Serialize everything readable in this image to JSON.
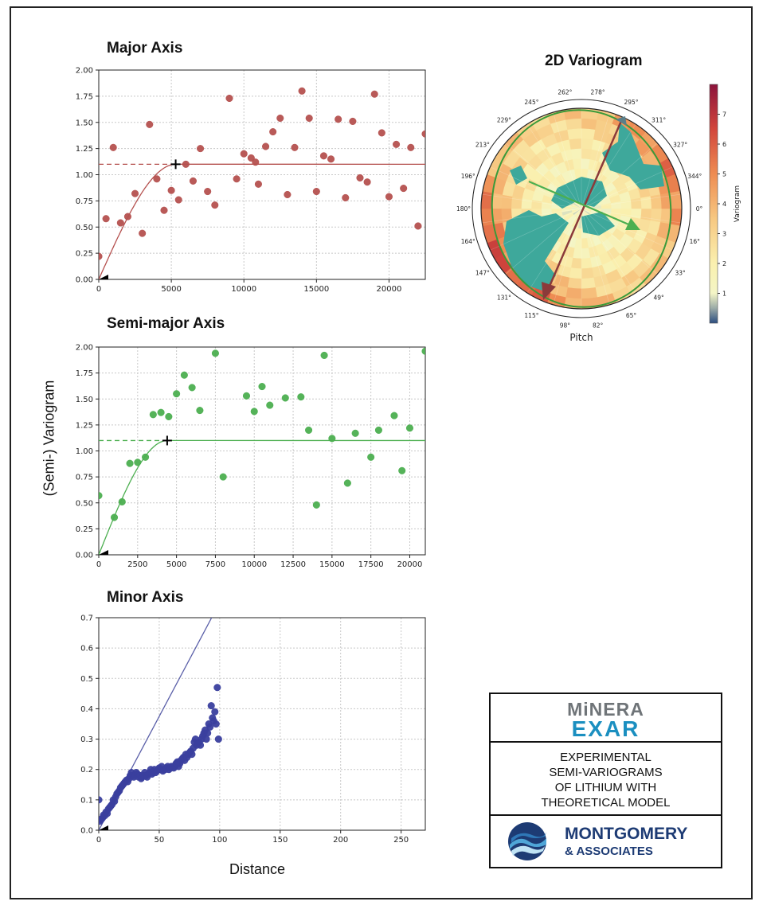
{
  "page": {
    "y_axis_label": "(Semi-) Variogram",
    "x_axis_label": "Distance"
  },
  "chart_data": [
    {
      "id": "major",
      "type": "scatter",
      "title": "Major Axis",
      "color": "#b5514f",
      "xlim": [
        0,
        22500
      ],
      "ylim": [
        0,
        2.0
      ],
      "xticks": [
        0,
        5000,
        10000,
        15000,
        20000
      ],
      "yticks": [
        0.0,
        0.25,
        0.5,
        0.75,
        1.0,
        1.25,
        1.5,
        1.75,
        2.0
      ],
      "xtick_labels": [
        "0",
        "5000",
        "10000",
        "15000",
        "20000"
      ],
      "ytick_labels": [
        "0.00",
        "0.25",
        "0.50",
        "0.75",
        "1.00",
        "1.25",
        "1.50",
        "1.75",
        "2.00"
      ],
      "grid": true,
      "sill": 1.1,
      "range": 5300,
      "x": [
        0,
        500,
        1000,
        1500,
        2000,
        2500,
        3000,
        3500,
        4000,
        4500,
        5000,
        5500,
        6000,
        6500,
        7000,
        7500,
        8000,
        9000,
        9500,
        10000,
        10500,
        10800,
        11000,
        11500,
        12000,
        12500,
        13000,
        13500,
        14000,
        14500,
        15000,
        15500,
        16000,
        16500,
        17000,
        17500,
        18000,
        18500,
        19000,
        19500,
        20000,
        20500,
        21000,
        21500,
        22000,
        22500
      ],
      "y": [
        0.22,
        0.58,
        1.26,
        0.54,
        0.6,
        0.82,
        0.44,
        1.48,
        0.96,
        0.66,
        0.85,
        0.76,
        1.1,
        0.94,
        1.25,
        0.84,
        0.71,
        1.73,
        0.96,
        1.2,
        1.16,
        1.12,
        0.91,
        1.27,
        1.41,
        1.54,
        0.81,
        1.26,
        1.8,
        1.54,
        0.84,
        1.18,
        1.15,
        1.53,
        0.78,
        1.51,
        0.97,
        0.93,
        1.77,
        1.4,
        0.79,
        1.29,
        0.87,
        1.26,
        0.51,
        1.39
      ]
    },
    {
      "id": "semimajor",
      "type": "scatter",
      "title": "Semi-major Axis",
      "color": "#4caf50",
      "xlim": [
        0,
        21000
      ],
      "ylim": [
        0,
        2.0
      ],
      "xticks": [
        0,
        2500,
        5000,
        7500,
        10000,
        12500,
        15000,
        17500,
        20000
      ],
      "yticks": [
        0.0,
        0.25,
        0.5,
        0.75,
        1.0,
        1.25,
        1.5,
        1.75,
        2.0
      ],
      "xtick_labels": [
        "0",
        "2500",
        "5000",
        "7500",
        "10000",
        "12500",
        "15000",
        "17500",
        "20000"
      ],
      "ytick_labels": [
        "0.00",
        "0.25",
        "0.50",
        "0.75",
        "1.00",
        "1.25",
        "1.50",
        "1.75",
        "2.00"
      ],
      "grid": true,
      "sill": 1.1,
      "range": 4400,
      "x": [
        0,
        1000,
        1500,
        2000,
        2500,
        3000,
        3500,
        4000,
        4500,
        5000,
        5500,
        6000,
        6500,
        7500,
        8000,
        9500,
        10000,
        10500,
        11000,
        12000,
        13000,
        13500,
        14000,
        14500,
        15000,
        16000,
        16500,
        17500,
        18000,
        19000,
        19500,
        20000,
        21000
      ],
      "y": [
        0.57,
        0.36,
        0.51,
        0.88,
        0.89,
        0.94,
        1.35,
        1.37,
        1.33,
        1.55,
        1.73,
        1.61,
        1.39,
        1.94,
        0.75,
        1.53,
        1.38,
        1.62,
        1.44,
        1.51,
        1.52,
        1.2,
        0.48,
        1.92,
        1.12,
        0.69,
        1.17,
        0.94,
        1.2,
        1.34,
        0.81,
        1.22,
        1.96
      ]
    },
    {
      "id": "minor",
      "type": "scatter",
      "title": "Minor Axis",
      "color": "#3a3f9e",
      "xlim": [
        0,
        270
      ],
      "ylim": [
        0,
        0.7
      ],
      "xticks": [
        0,
        50,
        100,
        150,
        200,
        250
      ],
      "yticks": [
        0.0,
        0.1,
        0.2,
        0.3,
        0.4,
        0.5,
        0.6,
        0.7
      ],
      "xtick_labels": [
        "0",
        "50",
        "100",
        "150",
        "200",
        "250"
      ],
      "ytick_labels": [
        "0.0",
        "0.1",
        "0.2",
        "0.3",
        "0.4",
        "0.5",
        "0.6",
        "0.7"
      ],
      "grid": true,
      "model_slope": 0.0075,
      "x": [
        0,
        1,
        2,
        3,
        4,
        5,
        6,
        7,
        8,
        9,
        10,
        11,
        12,
        13,
        14,
        15,
        16,
        17,
        18,
        19,
        20,
        21,
        22,
        23,
        24,
        25,
        26,
        27,
        28,
        29,
        30,
        31,
        32,
        33,
        34,
        35,
        36,
        37,
        38,
        39,
        40,
        41,
        42,
        43,
        44,
        45,
        46,
        47,
        48,
        49,
        50,
        51,
        52,
        53,
        54,
        55,
        56,
        57,
        58,
        59,
        60,
        61,
        62,
        63,
        64,
        65,
        66,
        67,
        68,
        69,
        70,
        71,
        72,
        73,
        74,
        75,
        76,
        77,
        78,
        79,
        80,
        81,
        82,
        83,
        84,
        85,
        86,
        87,
        88,
        89,
        90,
        91,
        92,
        93,
        94,
        95,
        96,
        97,
        98,
        99
      ],
      "y": [
        0.1,
        0.03,
        0.035,
        0.04,
        0.05,
        0.048,
        0.06,
        0.055,
        0.07,
        0.075,
        0.08,
        0.085,
        0.1,
        0.095,
        0.11,
        0.12,
        0.125,
        0.13,
        0.14,
        0.145,
        0.15,
        0.155,
        0.16,
        0.165,
        0.16,
        0.17,
        0.18,
        0.19,
        0.18,
        0.175,
        0.18,
        0.19,
        0.185,
        0.175,
        0.18,
        0.17,
        0.175,
        0.18,
        0.19,
        0.18,
        0.175,
        0.185,
        0.19,
        0.2,
        0.185,
        0.19,
        0.2,
        0.19,
        0.195,
        0.2,
        0.205,
        0.2,
        0.21,
        0.195,
        0.2,
        0.2,
        0.205,
        0.21,
        0.2,
        0.205,
        0.21,
        0.21,
        0.205,
        0.21,
        0.22,
        0.225,
        0.21,
        0.22,
        0.23,
        0.235,
        0.24,
        0.23,
        0.25,
        0.24,
        0.25,
        0.255,
        0.26,
        0.25,
        0.27,
        0.29,
        0.3,
        0.28,
        0.285,
        0.29,
        0.28,
        0.3,
        0.31,
        0.32,
        0.33,
        0.3,
        0.32,
        0.35,
        0.34,
        0.41,
        0.37,
        0.36,
        0.39,
        0.35,
        0.47,
        0.3
      ]
    },
    {
      "id": "variogram2d",
      "type": "heatmap",
      "title": "2D Variogram",
      "xlabel": "Pitch",
      "colorbar_label": "Variogram",
      "colorbar_ticks": [
        "1",
        "2",
        "3",
        "4",
        "5",
        "6",
        "7"
      ],
      "colorbar_min": 0,
      "colorbar_max": 8,
      "angle_labels": [
        "0°",
        "16°",
        "33°",
        "49°",
        "65°",
        "82°",
        "98°",
        "115°",
        "131°",
        "147°",
        "164°",
        "180°",
        "196°",
        "213°",
        "229°",
        "245°",
        "262°",
        "278°",
        "295°",
        "311°",
        "327°",
        "344°"
      ],
      "major_arrow_color": "#8b3a3a",
      "minor_arrow_color": "#4caf50"
    }
  ],
  "legend_box": {
    "logo_top_word": "MiNERA",
    "logo_bottom_word": "EXAR",
    "caption_lines": [
      "EXPERIMENTAL",
      "SEMI-VARIOGRAMS",
      "OF LITHIUM WITH",
      "THEORETICAL MODEL"
    ],
    "firm_name": "MONTGOMERY",
    "firm_sub": "& ASSOCIATES"
  }
}
